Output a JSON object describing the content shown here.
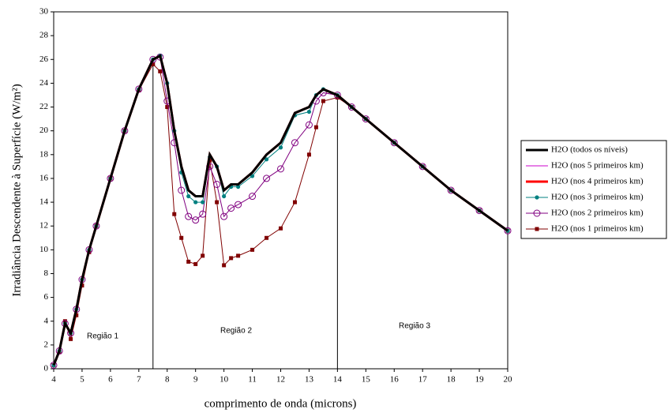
{
  "chart_data": {
    "type": "line",
    "x_label": "comprimento de onda (microns)",
    "y_label": "Irradiância Descendente à Superfície (W/m²)",
    "annotations": [
      "Região 1",
      "Região 2",
      "Região 3"
    ],
    "region_bounds": [
      7.5,
      14
    ],
    "xlim": [
      4,
      20
    ],
    "xticks": [
      4,
      5,
      6,
      7,
      8,
      9,
      10,
      11,
      12,
      13,
      14,
      15,
      16,
      17,
      18,
      19,
      20
    ],
    "ylim": [
      0,
      30
    ],
    "yticks": [
      0,
      2,
      4,
      6,
      8,
      10,
      12,
      14,
      16,
      18,
      20,
      22,
      24,
      26,
      28,
      30
    ],
    "x": [
      4,
      4.2,
      4.4,
      4.6,
      4.8,
      5,
      5.25,
      5.5,
      6,
      6.5,
      7,
      7.5,
      7.75,
      8,
      8.25,
      8.5,
      8.75,
      9,
      9.25,
      9.5,
      9.75,
      10,
      10.25,
      10.5,
      11,
      11.5,
      12,
      12.5,
      13,
      13.25,
      13.5,
      14,
      14.5,
      15,
      16,
      17,
      18,
      19,
      20
    ],
    "series": [
      {
        "name": "H2O (todos os níveis)",
        "color": "#000000",
        "marker": "none",
        "width": 3,
        "values": [
          0.3,
          1.5,
          3.8,
          3.0,
          5.0,
          7.5,
          10,
          12,
          16,
          20,
          23.5,
          26,
          26.3,
          24,
          20,
          17,
          15,
          14.5,
          14.5,
          18,
          17,
          15,
          15.5,
          15.5,
          16.5,
          18,
          19,
          21.5,
          22,
          23,
          23.5,
          23,
          22,
          21,
          19,
          17,
          15,
          13.3,
          11.6
        ]
      },
      {
        "name": "H2O (nos 5 primeiros km)",
        "color": "#cc00cc",
        "marker": "none",
        "width": 1,
        "values": [
          0.3,
          1.5,
          3.8,
          3.0,
          5.0,
          7.5,
          10,
          12,
          16,
          20,
          23.5,
          26,
          26.3,
          24,
          20,
          17,
          15,
          14.5,
          14.5,
          18,
          17,
          15,
          15.5,
          15.5,
          16.5,
          18,
          19,
          21.5,
          22,
          23,
          23.5,
          23,
          22,
          21,
          19,
          17,
          15,
          13.3,
          11.6
        ]
      },
      {
        "name": "H2O (nos 4 primeiros km)",
        "color": "#ff0000",
        "marker": "none",
        "width": 3,
        "values": [
          0.3,
          1.5,
          3.8,
          3.0,
          5.0,
          7.5,
          10,
          12,
          16,
          20,
          23.5,
          26,
          26.3,
          24,
          20,
          17,
          15,
          14.5,
          14.5,
          18,
          17,
          15,
          15.5,
          15.5,
          16.5,
          18,
          19,
          21.5,
          22,
          23,
          23.5,
          23,
          22,
          21,
          19,
          17,
          15,
          13.3,
          11.6
        ]
      },
      {
        "name": "H2O (nos 3 primeiros km)",
        "color": "#008080",
        "marker": "dot",
        "width": 1,
        "values": [
          0.3,
          1.5,
          3.8,
          3.0,
          5.0,
          7.5,
          10,
          12,
          16,
          20,
          23.5,
          26,
          26.3,
          24,
          20,
          16.5,
          14.5,
          14,
          14,
          17.8,
          17,
          14.5,
          15.3,
          15.3,
          16.2,
          17.6,
          18.6,
          21.3,
          21.6,
          23,
          23.5,
          23,
          22,
          21,
          19,
          17,
          15,
          13.3,
          11.6
        ]
      },
      {
        "name": "H2O (nos 2 primeiros km)",
        "color": "#800080",
        "marker": "ring",
        "width": 1,
        "values": [
          0.3,
          1.5,
          3.8,
          3.0,
          5.0,
          7.5,
          10,
          12,
          16,
          20,
          23.5,
          26,
          26.2,
          22.5,
          19,
          15,
          12.8,
          12.5,
          13,
          17,
          15.5,
          12.8,
          13.5,
          13.8,
          14.5,
          16,
          16.8,
          19,
          20.5,
          22.5,
          23.2,
          23,
          22,
          21,
          19,
          17,
          15,
          13.3,
          11.6
        ]
      },
      {
        "name": "H2O (nos 1 primeiros km)",
        "color": "#800000",
        "marker": "square",
        "width": 1,
        "values": [
          0.3,
          1.4,
          4.0,
          2.5,
          4.5,
          7.0,
          9.8,
          12,
          16,
          20,
          23.4,
          25.6,
          25,
          22,
          13,
          11,
          9,
          8.8,
          9.5,
          17.5,
          14,
          8.7,
          9.3,
          9.5,
          10,
          11,
          11.8,
          14,
          18,
          20.3,
          22.5,
          22.8,
          22,
          21,
          19,
          17,
          15,
          13.3,
          11.6
        ]
      }
    ]
  }
}
